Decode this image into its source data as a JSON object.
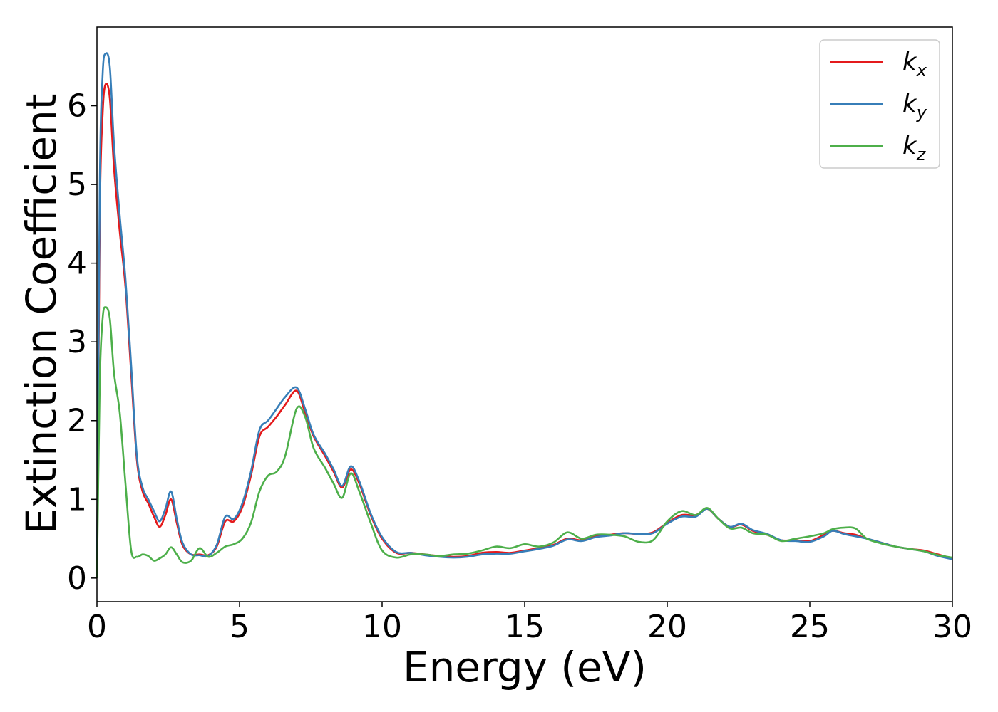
{
  "chart_data": {
    "type": "line",
    "xlabel": "Energy (eV)",
    "ylabel": "Extinction Coefficient",
    "xlim": [
      0,
      30
    ],
    "ylim": [
      -0.3,
      7.0
    ],
    "xticks": [
      0,
      5,
      10,
      15,
      20,
      25,
      30
    ],
    "yticks": [
      0,
      1,
      2,
      3,
      4,
      5,
      6
    ],
    "xtick_labels": [
      "0",
      "5",
      "10",
      "15",
      "20",
      "25",
      "30"
    ],
    "ytick_labels": [
      "0",
      "1",
      "2",
      "3",
      "4",
      "5",
      "6"
    ],
    "grid": false,
    "legend_position": "top-right",
    "x": [
      0,
      0.1,
      0.2,
      0.3,
      0.45,
      0.6,
      0.8,
      1.0,
      1.2,
      1.4,
      1.6,
      1.8,
      2.0,
      2.2,
      2.4,
      2.6,
      2.8,
      3.0,
      3.3,
      3.6,
      3.9,
      4.2,
      4.5,
      4.8,
      5.1,
      5.4,
      5.7,
      6.0,
      6.3,
      6.6,
      7.0,
      7.3,
      7.6,
      8.0,
      8.3,
      8.6,
      8.9,
      9.2,
      9.6,
      10.0,
      10.5,
      11.0,
      11.5,
      12.0,
      12.5,
      13.0,
      13.5,
      14.0,
      14.5,
      15.0,
      15.5,
      16.0,
      16.5,
      17.0,
      17.5,
      18.0,
      18.5,
      19.0,
      19.5,
      20.0,
      20.5,
      21.0,
      21.4,
      21.8,
      22.2,
      22.6,
      23.0,
      23.5,
      24.0,
      24.5,
      25.0,
      25.5,
      25.8,
      26.2,
      26.6,
      27.0,
      27.5,
      28.0,
      28.5,
      29.0,
      29.5,
      30.0
    ],
    "series": [
      {
        "name": "k",
        "subscript": "x",
        "color": "#e41a1c",
        "values": [
          0.0,
          4.6,
          5.9,
          6.27,
          6.1,
          5.2,
          4.4,
          3.7,
          2.6,
          1.5,
          1.1,
          0.95,
          0.78,
          0.65,
          0.8,
          1.0,
          0.7,
          0.42,
          0.3,
          0.3,
          0.29,
          0.4,
          0.72,
          0.72,
          0.9,
          1.3,
          1.8,
          1.92,
          2.05,
          2.2,
          2.38,
          2.1,
          1.8,
          1.55,
          1.35,
          1.15,
          1.38,
          1.2,
          0.8,
          0.5,
          0.32,
          0.32,
          0.3,
          0.28,
          0.27,
          0.28,
          0.32,
          0.33,
          0.32,
          0.35,
          0.38,
          0.42,
          0.5,
          0.48,
          0.53,
          0.55,
          0.57,
          0.56,
          0.58,
          0.7,
          0.8,
          0.8,
          0.88,
          0.75,
          0.65,
          0.68,
          0.6,
          0.55,
          0.48,
          0.48,
          0.47,
          0.55,
          0.6,
          0.57,
          0.55,
          0.5,
          0.45,
          0.4,
          0.37,
          0.35,
          0.3,
          0.25
        ]
      },
      {
        "name": "k",
        "subscript": "y",
        "color": "#377eb8",
        "values": [
          0.0,
          5.0,
          6.4,
          6.66,
          6.5,
          5.5,
          4.6,
          3.8,
          2.7,
          1.55,
          1.15,
          1.0,
          0.85,
          0.72,
          0.88,
          1.1,
          0.75,
          0.45,
          0.3,
          0.29,
          0.28,
          0.42,
          0.78,
          0.75,
          0.95,
          1.35,
          1.88,
          2.0,
          2.15,
          2.3,
          2.42,
          2.15,
          1.82,
          1.58,
          1.38,
          1.17,
          1.42,
          1.23,
          0.82,
          0.52,
          0.33,
          0.32,
          0.29,
          0.27,
          0.26,
          0.27,
          0.3,
          0.31,
          0.31,
          0.34,
          0.37,
          0.41,
          0.49,
          0.47,
          0.52,
          0.54,
          0.57,
          0.56,
          0.57,
          0.69,
          0.78,
          0.78,
          0.88,
          0.75,
          0.65,
          0.69,
          0.61,
          0.56,
          0.48,
          0.47,
          0.46,
          0.53,
          0.6,
          0.56,
          0.53,
          0.5,
          0.45,
          0.4,
          0.37,
          0.34,
          0.28,
          0.24
        ]
      },
      {
        "name": "k",
        "subscript": "z",
        "color": "#4daf4a",
        "values": [
          0.0,
          2.5,
          3.3,
          3.44,
          3.3,
          2.6,
          2.1,
          1.2,
          0.35,
          0.27,
          0.3,
          0.28,
          0.22,
          0.25,
          0.3,
          0.39,
          0.3,
          0.2,
          0.22,
          0.38,
          0.27,
          0.32,
          0.4,
          0.43,
          0.5,
          0.7,
          1.1,
          1.3,
          1.35,
          1.55,
          2.15,
          2.05,
          1.65,
          1.4,
          1.2,
          1.02,
          1.33,
          1.1,
          0.7,
          0.35,
          0.26,
          0.3,
          0.3,
          0.28,
          0.3,
          0.31,
          0.35,
          0.4,
          0.38,
          0.43,
          0.4,
          0.45,
          0.58,
          0.5,
          0.55,
          0.55,
          0.53,
          0.46,
          0.48,
          0.72,
          0.85,
          0.8,
          0.89,
          0.75,
          0.63,
          0.64,
          0.57,
          0.55,
          0.47,
          0.5,
          0.53,
          0.57,
          0.62,
          0.64,
          0.63,
          0.5,
          0.44,
          0.4,
          0.37,
          0.34,
          0.29,
          0.26
        ]
      }
    ]
  }
}
